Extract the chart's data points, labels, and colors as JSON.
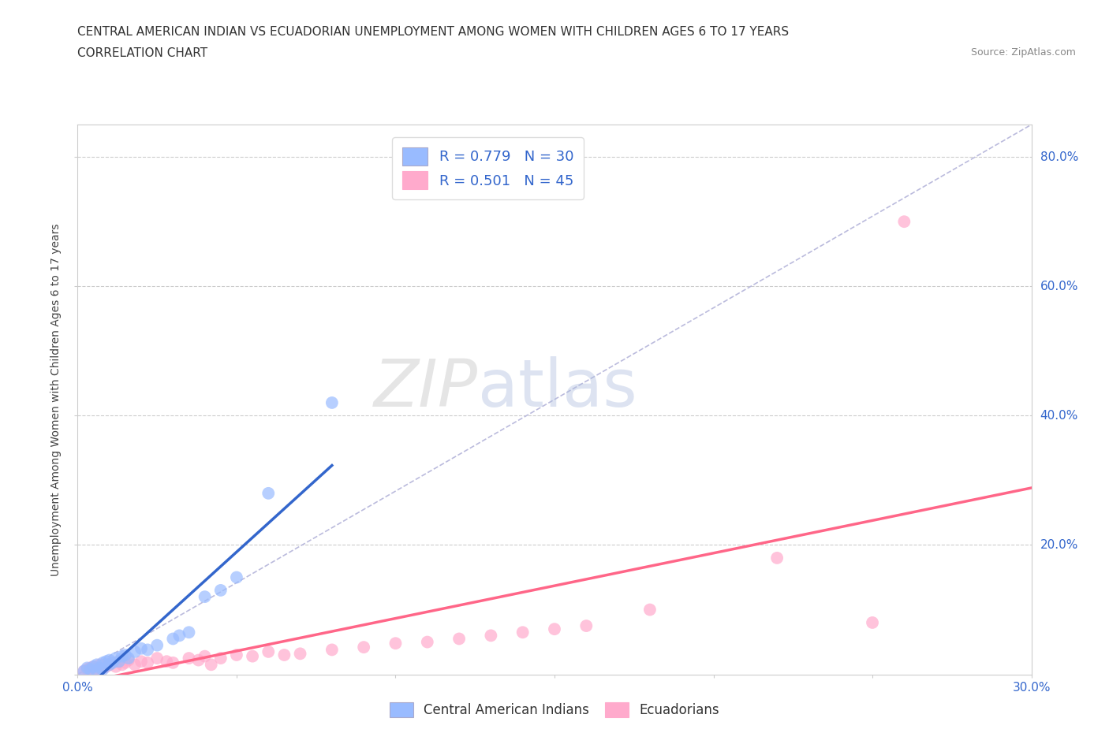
{
  "title_line1": "CENTRAL AMERICAN INDIAN VS ECUADORIAN UNEMPLOYMENT AMONG WOMEN WITH CHILDREN AGES 6 TO 17 YEARS",
  "title_line2": "CORRELATION CHART",
  "source": "Source: ZipAtlas.com",
  "ylabel": "Unemployment Among Women with Children Ages 6 to 17 years",
  "xlim": [
    0.0,
    0.3
  ],
  "ylim": [
    0.0,
    0.85
  ],
  "x_ticks": [
    0.0,
    0.05,
    0.1,
    0.15,
    0.2,
    0.25,
    0.3
  ],
  "x_tick_labels": [
    "0.0%",
    "",
    "",
    "",
    "",
    "",
    "30.0%"
  ],
  "y_ticks": [
    0.0,
    0.2,
    0.4,
    0.6,
    0.8
  ],
  "y_tick_labels": [
    "",
    "20.0%",
    "40.0%",
    "60.0%",
    "80.0%"
  ],
  "color_blue": "#99bbff",
  "color_blue_line": "#3366cc",
  "color_pink": "#ffaacc",
  "color_pink_line": "#ff6688",
  "color_diagonal": "#bbbbdd",
  "watermark_zip": "ZIP",
  "watermark_atlas": "atlas",
  "blue_scatter_x": [
    0.002,
    0.003,
    0.004,
    0.005,
    0.006,
    0.006,
    0.007,
    0.008,
    0.008,
    0.009,
    0.01,
    0.01,
    0.011,
    0.012,
    0.013,
    0.014,
    0.015,
    0.016,
    0.018,
    0.02,
    0.022,
    0.025,
    0.03,
    0.032,
    0.035,
    0.04,
    0.045,
    0.05,
    0.06,
    0.08
  ],
  "blue_scatter_y": [
    0.005,
    0.01,
    0.008,
    0.012,
    0.015,
    0.005,
    0.01,
    0.018,
    0.008,
    0.02,
    0.015,
    0.022,
    0.018,
    0.025,
    0.02,
    0.028,
    0.03,
    0.025,
    0.035,
    0.04,
    0.038,
    0.045,
    0.055,
    0.06,
    0.065,
    0.12,
    0.13,
    0.15,
    0.28,
    0.42
  ],
  "pink_scatter_x": [
    0.002,
    0.003,
    0.004,
    0.005,
    0.005,
    0.006,
    0.007,
    0.008,
    0.009,
    0.01,
    0.011,
    0.012,
    0.013,
    0.014,
    0.015,
    0.016,
    0.018,
    0.02,
    0.022,
    0.025,
    0.028,
    0.03,
    0.035,
    0.038,
    0.04,
    0.042,
    0.045,
    0.05,
    0.055,
    0.06,
    0.065,
    0.07,
    0.08,
    0.09,
    0.1,
    0.11,
    0.12,
    0.13,
    0.14,
    0.15,
    0.16,
    0.18,
    0.22,
    0.25,
    0.26
  ],
  "pink_scatter_y": [
    0.005,
    0.008,
    0.01,
    0.005,
    0.012,
    0.008,
    0.015,
    0.01,
    0.012,
    0.015,
    0.018,
    0.012,
    0.02,
    0.015,
    0.018,
    0.022,
    0.015,
    0.02,
    0.018,
    0.025,
    0.02,
    0.018,
    0.025,
    0.022,
    0.028,
    0.015,
    0.025,
    0.03,
    0.028,
    0.035,
    0.03,
    0.032,
    0.038,
    0.042,
    0.048,
    0.05,
    0.055,
    0.06,
    0.065,
    0.07,
    0.075,
    0.1,
    0.18,
    0.08,
    0.7
  ]
}
